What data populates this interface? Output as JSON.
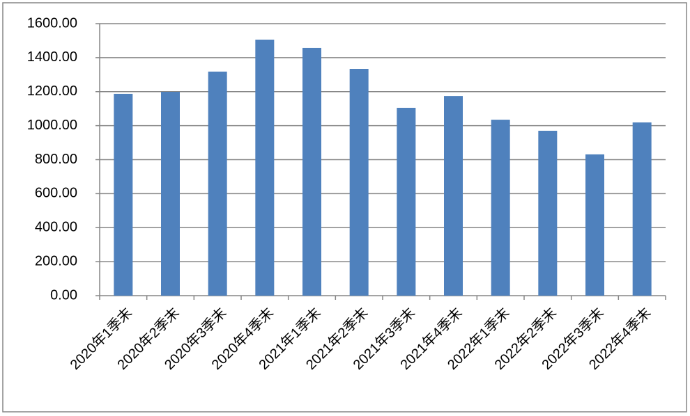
{
  "chart_data": {
    "type": "bar",
    "categories": [
      "2020年1季末",
      "2020年2季末",
      "2020年3季末",
      "2020年4季末",
      "2021年1季末",
      "2021年2季末",
      "2021年3季末",
      "2021年4季末",
      "2022年1季末",
      "2022年2季末",
      "2022年3季末",
      "2022年4季末"
    ],
    "values": [
      1187,
      1199,
      1318,
      1506,
      1457,
      1334,
      1105,
      1174,
      1035,
      970,
      831,
      1019
    ],
    "color": "#4f81bd",
    "ylim": [
      0,
      1600
    ],
    "yticks": [
      {
        "value": 0,
        "label": "0.00"
      },
      {
        "value": 200,
        "label": "200.00"
      },
      {
        "value": 400,
        "label": "400.00"
      },
      {
        "value": 600,
        "label": "600.00"
      },
      {
        "value": 800,
        "label": "800.00"
      },
      {
        "value": 1000,
        "label": "1000.00"
      },
      {
        "value": 1200,
        "label": "1200.00"
      },
      {
        "value": 1400,
        "label": "1400.00"
      },
      {
        "value": 1600,
        "label": "1600.00"
      }
    ],
    "grid": true
  }
}
